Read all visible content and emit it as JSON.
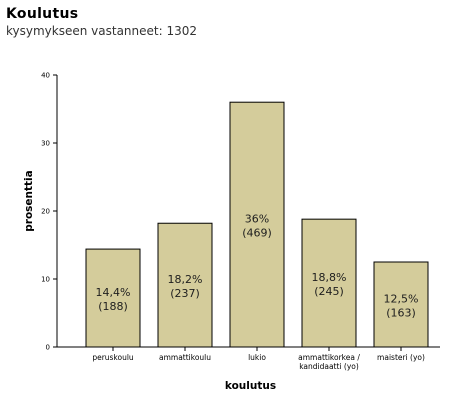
{
  "header": {
    "title": "Koulutus",
    "subtitle": "kysymykseen vastanneet: 1302"
  },
  "chart_data": {
    "type": "bar",
    "categories": [
      [
        "peruskoulu"
      ],
      [
        "ammattikoulu"
      ],
      [
        "lukio"
      ],
      [
        "ammattikorkea /",
        "kandidaatti (yo)"
      ],
      [
        "maisteri (yo)"
      ]
    ],
    "values": [
      14.4,
      18.2,
      36,
      18.8,
      12.5
    ],
    "value_labels": [
      "14,4%",
      "18,2%",
      "36%",
      "18,8%",
      "12,5%"
    ],
    "counts": [
      "(188)",
      "(237)",
      "(469)",
      "(245)",
      "(163)"
    ],
    "xlabel": "koulutus",
    "ylabel": "prosenttia",
    "ylim": [
      0,
      40
    ],
    "yticks": [
      0,
      10,
      20,
      30,
      40
    ],
    "grid": false,
    "colors": {
      "bar_fill": "#d4cc9b",
      "bar_stroke": "#000000",
      "label_text": "#1e1e1e"
    }
  }
}
